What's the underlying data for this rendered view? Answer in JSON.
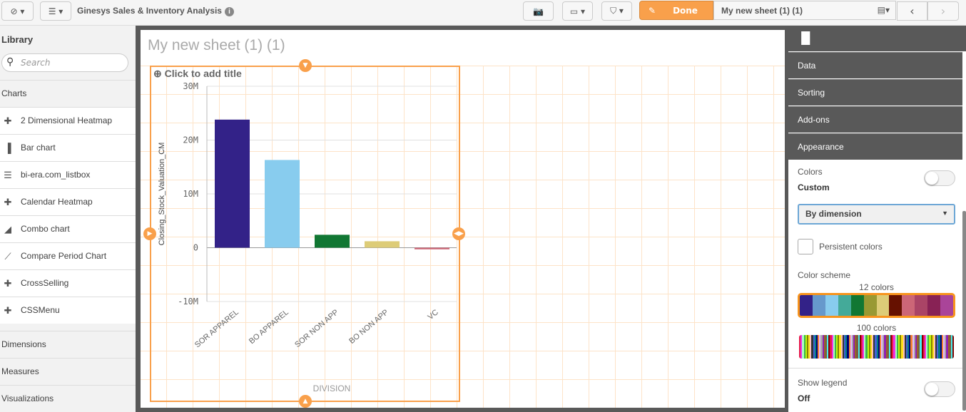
{
  "toolbar": {
    "app_title": "Ginesys Sales & Inventory Analysis",
    "done_label": "Done",
    "sheet_name": "My new sheet (1) (1)",
    "icons": [
      "compass-icon",
      "list-icon",
      "info-icon",
      "camera-icon",
      "presentation-icon",
      "bookmark-icon",
      "pencil-icon",
      "sheets-icon",
      "chevron-left-icon",
      "chevron-right-icon"
    ]
  },
  "library": {
    "title": "Library",
    "search_placeholder": "Search",
    "charts_label": "Charts",
    "items": [
      {
        "label": "2 Dimensional Heatmap",
        "icon": "puzzle-icon"
      },
      {
        "label": "Bar chart",
        "icon": "bar-chart-icon"
      },
      {
        "label": "bi-era.com_listbox",
        "icon": "listbox-icon"
      },
      {
        "label": "Calendar Heatmap",
        "icon": "puzzle-icon"
      },
      {
        "label": "Combo chart",
        "icon": "combo-chart-icon"
      },
      {
        "label": "Compare Period Chart",
        "icon": "line-chart-icon"
      },
      {
        "label": "CrossSelling",
        "icon": "puzzle-icon"
      },
      {
        "label": "CSSMenu",
        "icon": "puzzle-icon"
      }
    ],
    "sections": [
      "Dimensions",
      "Measures",
      "Visualizations"
    ]
  },
  "sheet": {
    "title": "My new sheet (1) (1)",
    "chart_title_placeholder": "Click to add title"
  },
  "chart_data": {
    "type": "bar",
    "categories": [
      "SOR APPAREL",
      "BO APPAREL",
      "SOR NON APP",
      "BO NON APP",
      "VC"
    ],
    "values": [
      23800000,
      16300000,
      2400000,
      1200000,
      -300000
    ],
    "colors": [
      "#332288",
      "#88ccee",
      "#117733",
      "#ddcc77",
      "#cc6677"
    ],
    "xlabel": "DIVISION",
    "ylabel": "Closing_Stock_Valuation_CM",
    "ylim": [
      -10000000,
      30000000
    ],
    "ticks": [
      {
        "v": 30000000,
        "label": "30M"
      },
      {
        "v": 20000000,
        "label": "20M"
      },
      {
        "v": 10000000,
        "label": "10M"
      },
      {
        "v": 0,
        "label": "0"
      },
      {
        "v": -10000000,
        "label": "-10M"
      }
    ],
    "grid": true
  },
  "properties": {
    "sections": [
      "Data",
      "Sorting",
      "Add-ons",
      "Appearance"
    ],
    "colors_label": "Colors",
    "colors_value": "Custom",
    "colors_toggle": false,
    "color_mode": "By dimension",
    "persistent_colors_label": "Persistent colors",
    "persistent_colors": false,
    "color_scheme_label": "Color scheme",
    "scheme12_label": "12 colors",
    "scheme100_label": "100 colors",
    "scheme12": [
      "#332288",
      "#6699cc",
      "#88ccee",
      "#44aa99",
      "#117733",
      "#999933",
      "#ddcc77",
      "#661100",
      "#cc6677",
      "#aa4466",
      "#882255",
      "#aa4499"
    ],
    "show_legend_label": "Show legend",
    "show_legend_value": "Off",
    "show_legend": false
  }
}
